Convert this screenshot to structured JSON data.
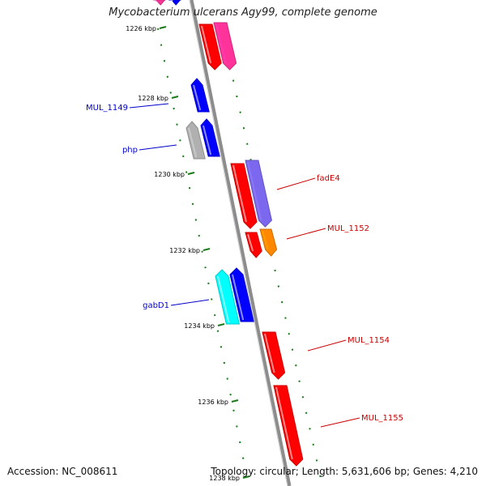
{
  "title": "Mycobacterium ulcerans Agy99, complete genome",
  "accession": "Accession: NC_008611",
  "topology": "Topology: circular; Length: 5,631,606 bp; Genes: 4,210",
  "colors": {
    "backbone": "#8c8c8c",
    "tick": "#1a7a1a",
    "forward_label": "#0000cc",
    "reverse_label": "#cc0000"
  },
  "ticks": [
    {
      "label": "1226 kbp"
    },
    {
      "label": "1228 kbp"
    },
    {
      "label": "1230 kbp"
    },
    {
      "label": "1232 kbp"
    },
    {
      "label": "1234 kbp"
    },
    {
      "label": "1236 kbp"
    },
    {
      "label": "1238 kbp"
    }
  ],
  "genes": [
    {
      "name": "MUL_1149",
      "strand": "forward",
      "color": "#0000ff"
    },
    {
      "name": "php",
      "strand": "forward",
      "color": "#0000ff"
    },
    {
      "name": "fadE4",
      "strand": "reverse",
      "color": "#ff0000"
    },
    {
      "name": "MUL_1152",
      "strand": "reverse",
      "color": "#ff0000"
    },
    {
      "name": "gabD1",
      "strand": "forward",
      "color": "#00ffff"
    },
    {
      "name": "MUL_1154",
      "strand": "reverse",
      "color": "#ff0000"
    },
    {
      "name": "MUL_1155",
      "strand": "reverse",
      "color": "#ff0000"
    }
  ],
  "unlabeled_features": [
    {
      "color": "#ff3399"
    },
    {
      "color": "#ff0000"
    },
    {
      "color": "#ff3399"
    },
    {
      "color": "#0000ff"
    },
    {
      "color": "#0000ff"
    },
    {
      "color": "#b0b0b0"
    },
    {
      "color": "#7b68ee"
    },
    {
      "color": "#ff8800"
    },
    {
      "color": "#0000ff"
    }
  ]
}
